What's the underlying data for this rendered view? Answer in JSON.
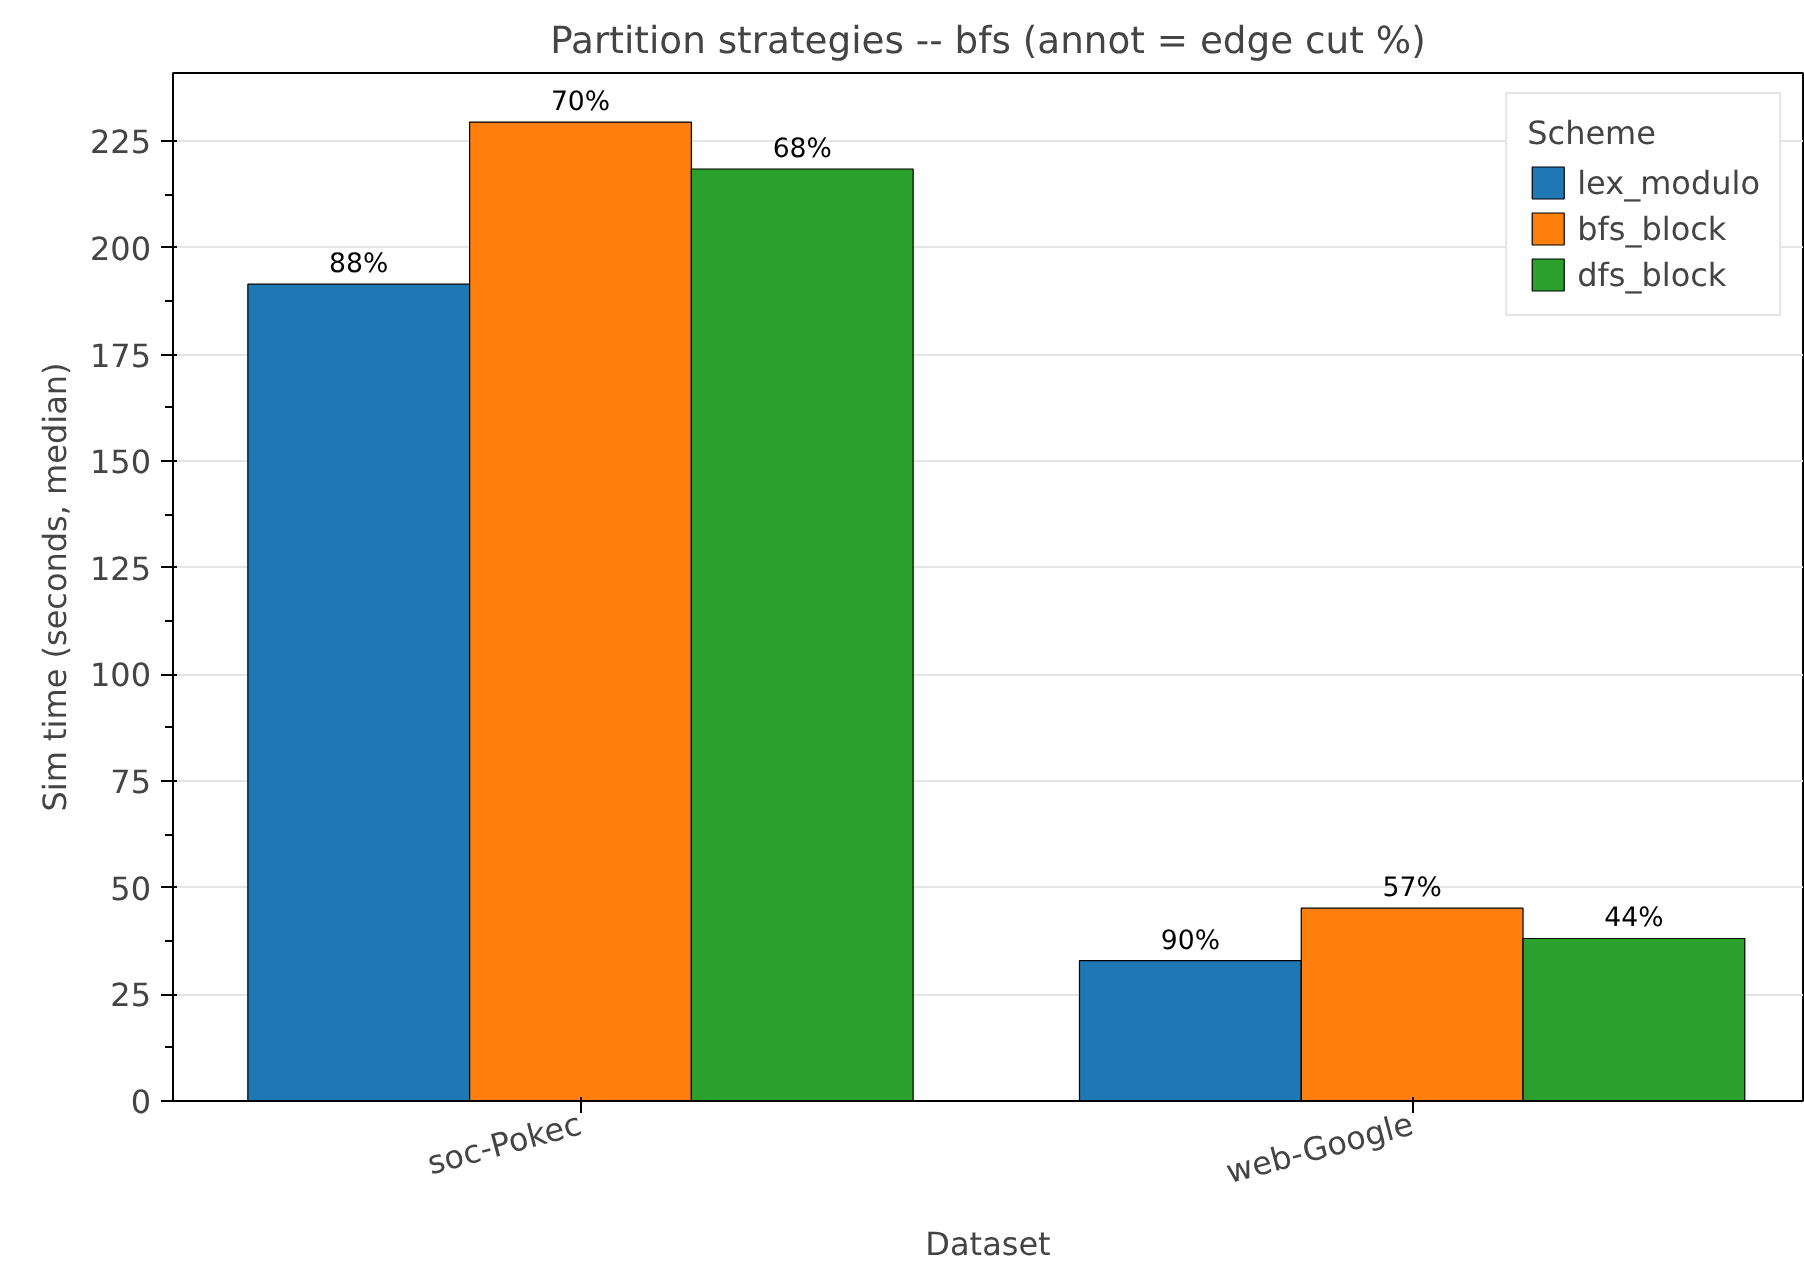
{
  "chart_data": {
    "type": "bar",
    "title": "Partition strategies -- bfs (annot = edge cut %)",
    "xlabel": "Dataset",
    "ylabel": "Sim time (seconds, median)",
    "legend_title": "Scheme",
    "categories": [
      "soc-Pokec",
      "web-Google"
    ],
    "series": [
      {
        "name": "lex_modulo",
        "color": "#1f77b4",
        "values": [
          191.5,
          32.9
        ]
      },
      {
        "name": "bfs_block",
        "color": "#ff7f0e",
        "values": [
          229.5,
          45.2
        ]
      },
      {
        "name": "dfs_block",
        "color": "#2ca02c",
        "values": [
          218.5,
          38.1
        ]
      }
    ],
    "annotations": [
      "88%",
      "70%",
      "68%",
      "90%",
      "57%",
      "44%"
    ],
    "ylim": [
      0,
      241
    ],
    "yticks": [
      0,
      25,
      50,
      75,
      100,
      125,
      150,
      175,
      200,
      225
    ],
    "grid": "y",
    "legend": "top right"
  }
}
